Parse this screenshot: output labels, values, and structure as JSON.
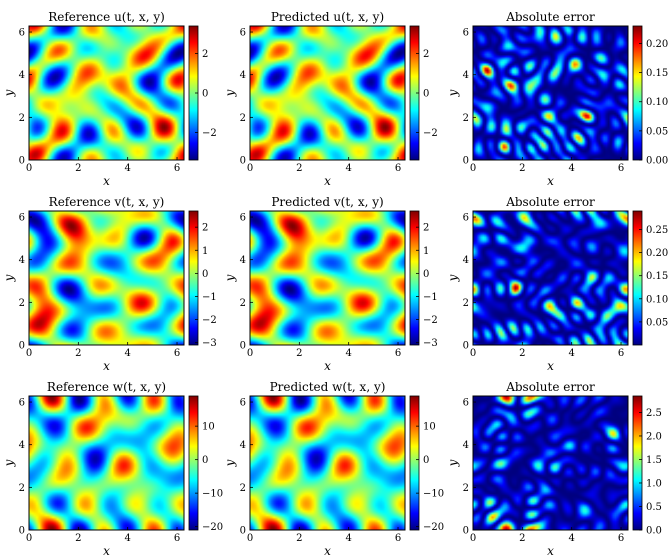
{
  "figure": {
    "colormap": "jet",
    "jet_stops": [
      "#00007f",
      "#0000ff",
      "#007fff",
      "#00ffff",
      "#7fff7f",
      "#ffff00",
      "#ff7f00",
      "#ff0000",
      "#7f0000"
    ]
  },
  "chart_data": [
    {
      "type": "heatmap",
      "title": "Reference u(t, x, y)",
      "xlabel": "x",
      "ylabel": "y",
      "xlim": [
        0,
        6.283
      ],
      "ylim": [
        0,
        6.283
      ],
      "xticks": [
        "0",
        "2",
        "4",
        "6"
      ],
      "yticks": [
        "0",
        "2",
        "4",
        "6"
      ],
      "colorbar": {
        "range": [
          -3.4,
          3.4
        ],
        "ticks": [
          {
            "value": 2,
            "label": "2"
          },
          {
            "value": 0,
            "label": "0"
          },
          {
            "value": -2,
            "label": "−2"
          }
        ]
      },
      "field": "smooth",
      "seed": 11
    },
    {
      "type": "heatmap",
      "title": "Predicted u(t, x, y)",
      "xlabel": "x",
      "ylabel": "y",
      "xlim": [
        0,
        6.283
      ],
      "ylim": [
        0,
        6.283
      ],
      "xticks": [
        "0",
        "2",
        "4",
        "6"
      ],
      "yticks": [
        "0",
        "2",
        "4",
        "6"
      ],
      "colorbar": {
        "range": [
          -3.4,
          3.4
        ],
        "ticks": [
          {
            "value": 2,
            "label": "2"
          },
          {
            "value": 0,
            "label": "0"
          },
          {
            "value": -2,
            "label": "−2"
          }
        ]
      },
      "field": "smooth",
      "seed": 11
    },
    {
      "type": "heatmap",
      "title": "Absolute error",
      "xlabel": "x",
      "ylabel": "y",
      "xlim": [
        0,
        6.283
      ],
      "ylim": [
        0,
        6.283
      ],
      "xticks": [
        "0",
        "2",
        "4",
        "6"
      ],
      "yticks": [
        "0",
        "2",
        "4",
        "6"
      ],
      "colorbar": {
        "range": [
          0,
          0.23
        ],
        "ticks": [
          {
            "value": 0.2,
            "label": "0.20"
          },
          {
            "value": 0.15,
            "label": "0.15"
          },
          {
            "value": 0.1,
            "label": "0.10"
          },
          {
            "value": 0.05,
            "label": "0.05"
          },
          {
            "value": 0,
            "label": "0.00"
          }
        ]
      },
      "field": "error",
      "seed": 12
    },
    {
      "type": "heatmap",
      "title": "Reference v(t, x, y)",
      "xlabel": "x",
      "ylabel": "y",
      "xlim": [
        0,
        6.283
      ],
      "ylim": [
        0,
        6.283
      ],
      "xticks": [
        "0",
        "2",
        "4",
        "6"
      ],
      "yticks": [
        "0",
        "2",
        "4",
        "6"
      ],
      "colorbar": {
        "range": [
          -3.1,
          2.7
        ],
        "ticks": [
          {
            "value": 2,
            "label": "2"
          },
          {
            "value": 1,
            "label": "1"
          },
          {
            "value": 0,
            "label": "0"
          },
          {
            "value": -1,
            "label": "−1"
          },
          {
            "value": -2,
            "label": "−2"
          },
          {
            "value": -3,
            "label": "−3"
          }
        ]
      },
      "field": "smooth",
      "seed": 21
    },
    {
      "type": "heatmap",
      "title": "Predicted v(t, x, y)",
      "xlabel": "x",
      "ylabel": "y",
      "xlim": [
        0,
        6.283
      ],
      "ylim": [
        0,
        6.283
      ],
      "xticks": [
        "0",
        "2",
        "4",
        "6"
      ],
      "yticks": [
        "0",
        "2",
        "4",
        "6"
      ],
      "colorbar": {
        "range": [
          -3.1,
          2.7
        ],
        "ticks": [
          {
            "value": 2,
            "label": "2"
          },
          {
            "value": 1,
            "label": "1"
          },
          {
            "value": 0,
            "label": "0"
          },
          {
            "value": -1,
            "label": "−1"
          },
          {
            "value": -2,
            "label": "−2"
          },
          {
            "value": -3,
            "label": "−3"
          }
        ]
      },
      "field": "smooth",
      "seed": 21
    },
    {
      "type": "heatmap",
      "title": "Absolute error",
      "xlabel": "x",
      "ylabel": "y",
      "xlim": [
        0,
        6.283
      ],
      "ylim": [
        0,
        6.283
      ],
      "xticks": [
        "0",
        "2",
        "4",
        "6"
      ],
      "yticks": [
        "0",
        "2",
        "4",
        "6"
      ],
      "colorbar": {
        "range": [
          0,
          0.29
        ],
        "ticks": [
          {
            "value": 0.25,
            "label": "0.25"
          },
          {
            "value": 0.2,
            "label": "0.20"
          },
          {
            "value": 0.15,
            "label": "0.15"
          },
          {
            "value": 0.1,
            "label": "0.10"
          },
          {
            "value": 0.05,
            "label": "0.05"
          }
        ]
      },
      "field": "error",
      "seed": 22
    },
    {
      "type": "heatmap",
      "title": "Reference w(t, x, y)",
      "xlabel": "x",
      "ylabel": "y",
      "xlim": [
        0,
        6.283
      ],
      "ylim": [
        0,
        6.283
      ],
      "xticks": [
        "0",
        "2",
        "4",
        "6"
      ],
      "yticks": [
        "0",
        "2",
        "4",
        "6"
      ],
      "colorbar": {
        "range": [
          -21,
          19
        ],
        "ticks": [
          {
            "value": 10,
            "label": "10"
          },
          {
            "value": 0,
            "label": "0"
          },
          {
            "value": -10,
            "label": "−10"
          },
          {
            "value": -20,
            "label": "−20"
          }
        ]
      },
      "field": "smooth",
      "seed": 31
    },
    {
      "type": "heatmap",
      "title": "Predicted w(t, x, y)",
      "xlabel": "x",
      "ylabel": "y",
      "xlim": [
        0,
        6.283
      ],
      "ylim": [
        0,
        6.283
      ],
      "xticks": [
        "0",
        "2",
        "4",
        "6"
      ],
      "yticks": [
        "0",
        "2",
        "4",
        "6"
      ],
      "colorbar": {
        "range": [
          -21,
          19
        ],
        "ticks": [
          {
            "value": 10,
            "label": "10"
          },
          {
            "value": 0,
            "label": "0"
          },
          {
            "value": -10,
            "label": "−10"
          },
          {
            "value": -20,
            "label": "−20"
          }
        ]
      },
      "field": "smooth",
      "seed": 31
    },
    {
      "type": "heatmap",
      "title": "Absolute error",
      "xlabel": "x",
      "ylabel": "y",
      "xlim": [
        0,
        6.283
      ],
      "ylim": [
        0,
        6.283
      ],
      "xticks": [
        "0",
        "2",
        "4",
        "6"
      ],
      "yticks": [
        "0",
        "2",
        "4",
        "6"
      ],
      "colorbar": {
        "range": [
          0,
          2.85
        ],
        "ticks": [
          {
            "value": 2.5,
            "label": "2.5"
          },
          {
            "value": 2,
            "label": "2.0"
          },
          {
            "value": 1.5,
            "label": "1.5"
          },
          {
            "value": 1,
            "label": "1.0"
          },
          {
            "value": 0.5,
            "label": "0.5"
          },
          {
            "value": 0,
            "label": "0.0"
          }
        ]
      },
      "field": "error",
      "seed": 32
    }
  ]
}
